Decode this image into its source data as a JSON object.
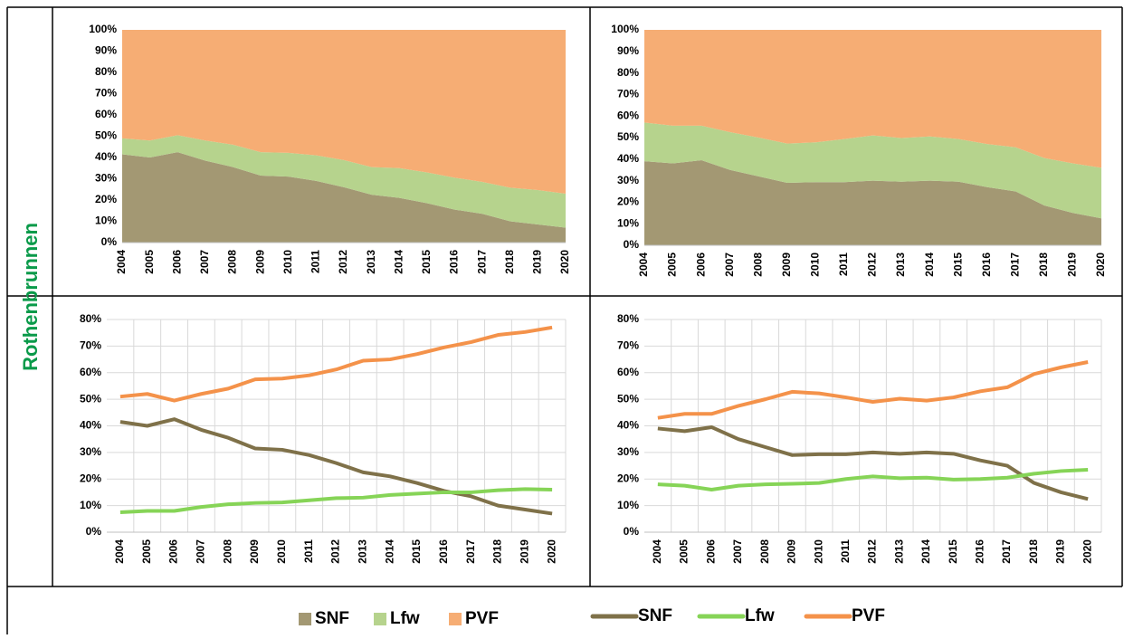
{
  "row_label": "Rothenbrunnen",
  "chart_data": [
    {
      "type": "area",
      "stacked": true,
      "categories": [
        "2004",
        "2005",
        "2006",
        "2007",
        "2008",
        "2009",
        "2010",
        "2011",
        "2012",
        "2013",
        "2014",
        "2015",
        "2016",
        "2017",
        "2018",
        "2019",
        "2020"
      ],
      "series": [
        {
          "name": "SNF",
          "color": "#a39873",
          "values": [
            41.5,
            40,
            42.5,
            38.5,
            35.5,
            31.5,
            31,
            29,
            26,
            22.5,
            21,
            18.5,
            15.5,
            13.5,
            10,
            8.5,
            7
          ]
        },
        {
          "name": "Lfw",
          "color": "#b6d38d",
          "values": [
            7.5,
            8,
            8,
            9.5,
            10.5,
            11,
            11.2,
            12,
            12.8,
            13,
            14,
            14.5,
            15,
            15,
            15.8,
            16.2,
            16
          ]
        },
        {
          "name": "PVF",
          "color": "#f6ad74",
          "values": [
            51,
            52,
            49.5,
            52,
            54,
            57.5,
            57.8,
            59,
            61.2,
            64.5,
            65,
            67,
            69.5,
            71.5,
            74.2,
            75.3,
            77
          ]
        }
      ],
      "ylim": [
        0,
        100
      ],
      "yticks": [
        {
          "value": 0,
          "label": "0%"
        },
        {
          "value": 10,
          "label": "10%"
        },
        {
          "value": 20,
          "label": "20%"
        },
        {
          "value": 30,
          "label": "30%"
        },
        {
          "value": 40,
          "label": "40%"
        },
        {
          "value": 50,
          "label": "50%"
        },
        {
          "value": 60,
          "label": "60%"
        },
        {
          "value": 70,
          "label": "70%"
        },
        {
          "value": 80,
          "label": "80%"
        },
        {
          "value": 90,
          "label": "90%"
        },
        {
          "value": 100,
          "label": "100%"
        }
      ],
      "grid": false
    },
    {
      "type": "area",
      "stacked": true,
      "categories": [
        "2004",
        "2005",
        "2006",
        "2007",
        "2008",
        "2009",
        "2010",
        "2011",
        "2012",
        "2013",
        "2014",
        "2015",
        "2016",
        "2017",
        "2018",
        "2019",
        "2020"
      ],
      "series": [
        {
          "name": "SNF",
          "color": "#a39873",
          "values": [
            39,
            38,
            39.5,
            35,
            32,
            29,
            29.3,
            29.3,
            30,
            29.5,
            30,
            29.5,
            27,
            25,
            18.5,
            15,
            12.5
          ]
        },
        {
          "name": "Lfw",
          "color": "#b6d38d",
          "values": [
            18,
            17.5,
            16,
            17.5,
            18,
            18.2,
            18.5,
            20,
            21,
            20.3,
            20.5,
            19.8,
            20,
            20.5,
            22,
            23,
            23.5
          ]
        },
        {
          "name": "PVF",
          "color": "#f6ad74",
          "values": [
            43,
            44.5,
            44.5,
            47.5,
            50,
            52.8,
            52.2,
            50.7,
            49,
            50.2,
            49.5,
            50.7,
            53,
            54.5,
            59.5,
            62,
            64
          ]
        }
      ],
      "ylim": [
        0,
        100
      ],
      "yticks": [
        {
          "value": 0,
          "label": "0%"
        },
        {
          "value": 10,
          "label": "10%"
        },
        {
          "value": 20,
          "label": "20%"
        },
        {
          "value": 30,
          "label": "30%"
        },
        {
          "value": 40,
          "label": "40%"
        },
        {
          "value": 50,
          "label": "50%"
        },
        {
          "value": 60,
          "label": "60%"
        },
        {
          "value": 70,
          "label": "70%"
        },
        {
          "value": 80,
          "label": "80%"
        },
        {
          "value": 90,
          "label": "90%"
        },
        {
          "value": 100,
          "label": "100%"
        }
      ],
      "grid": false
    },
    {
      "type": "line",
      "categories": [
        "2004",
        "2005",
        "2006",
        "2007",
        "2008",
        "2009",
        "2010",
        "2011",
        "2012",
        "2013",
        "2014",
        "2015",
        "2016",
        "2017",
        "2018",
        "2019",
        "2020"
      ],
      "series": [
        {
          "name": "SNF",
          "color": "#7f7149",
          "values": [
            41.5,
            40,
            42.5,
            38.5,
            35.5,
            31.5,
            31,
            29,
            26,
            22.5,
            21,
            18.5,
            15.5,
            13.5,
            10,
            8.5,
            7
          ]
        },
        {
          "name": "Lfw",
          "color": "#86d457",
          "values": [
            7.5,
            8,
            8,
            9.5,
            10.5,
            11,
            11.2,
            12,
            12.8,
            13,
            14,
            14.5,
            15,
            15,
            15.8,
            16.2,
            16
          ]
        },
        {
          "name": "PVF",
          "color": "#f4924a",
          "values": [
            51,
            52,
            49.5,
            52,
            54,
            57.5,
            57.8,
            59,
            61.2,
            64.5,
            65,
            67,
            69.5,
            71.5,
            74.2,
            75.3,
            77
          ]
        }
      ],
      "ylim": [
        0,
        80
      ],
      "yticks": [
        {
          "value": 0,
          "label": "0%"
        },
        {
          "value": 10,
          "label": "10%"
        },
        {
          "value": 20,
          "label": "20%"
        },
        {
          "value": 30,
          "label": "30%"
        },
        {
          "value": 40,
          "label": "40%"
        },
        {
          "value": 50,
          "label": "50%"
        },
        {
          "value": 60,
          "label": "60%"
        },
        {
          "value": 70,
          "label": "70%"
        },
        {
          "value": 80,
          "label": "80%"
        }
      ],
      "grid": true
    },
    {
      "type": "line",
      "categories": [
        "2004",
        "2005",
        "2006",
        "2007",
        "2008",
        "2009",
        "2010",
        "2011",
        "2012",
        "2013",
        "2014",
        "2015",
        "2016",
        "2017",
        "2018",
        "2019",
        "2020"
      ],
      "series": [
        {
          "name": "SNF",
          "color": "#7f7149",
          "values": [
            39,
            38,
            39.5,
            35,
            32,
            29,
            29.3,
            29.3,
            30,
            29.5,
            30,
            29.5,
            27,
            25,
            18.5,
            15,
            12.5
          ]
        },
        {
          "name": "Lfw",
          "color": "#86d457",
          "values": [
            18,
            17.5,
            16,
            17.5,
            18,
            18.2,
            18.5,
            20,
            21,
            20.3,
            20.5,
            19.8,
            20,
            20.5,
            22,
            23,
            23.5
          ]
        },
        {
          "name": "PVF",
          "color": "#f4924a",
          "values": [
            43,
            44.5,
            44.5,
            47.5,
            50,
            52.8,
            52.2,
            50.7,
            49,
            50.2,
            49.5,
            50.7,
            53,
            54.5,
            59.5,
            62,
            64
          ]
        }
      ],
      "ylim": [
        0,
        80
      ],
      "yticks": [
        {
          "value": 0,
          "label": "0%"
        },
        {
          "value": 10,
          "label": "10%"
        },
        {
          "value": 20,
          "label": "20%"
        },
        {
          "value": 30,
          "label": "30%"
        },
        {
          "value": 40,
          "label": "40%"
        },
        {
          "value": 50,
          "label": "50%"
        },
        {
          "value": 60,
          "label": "60%"
        },
        {
          "value": 70,
          "label": "70%"
        },
        {
          "value": 80,
          "label": "80%"
        }
      ],
      "grid": true
    }
  ]
}
